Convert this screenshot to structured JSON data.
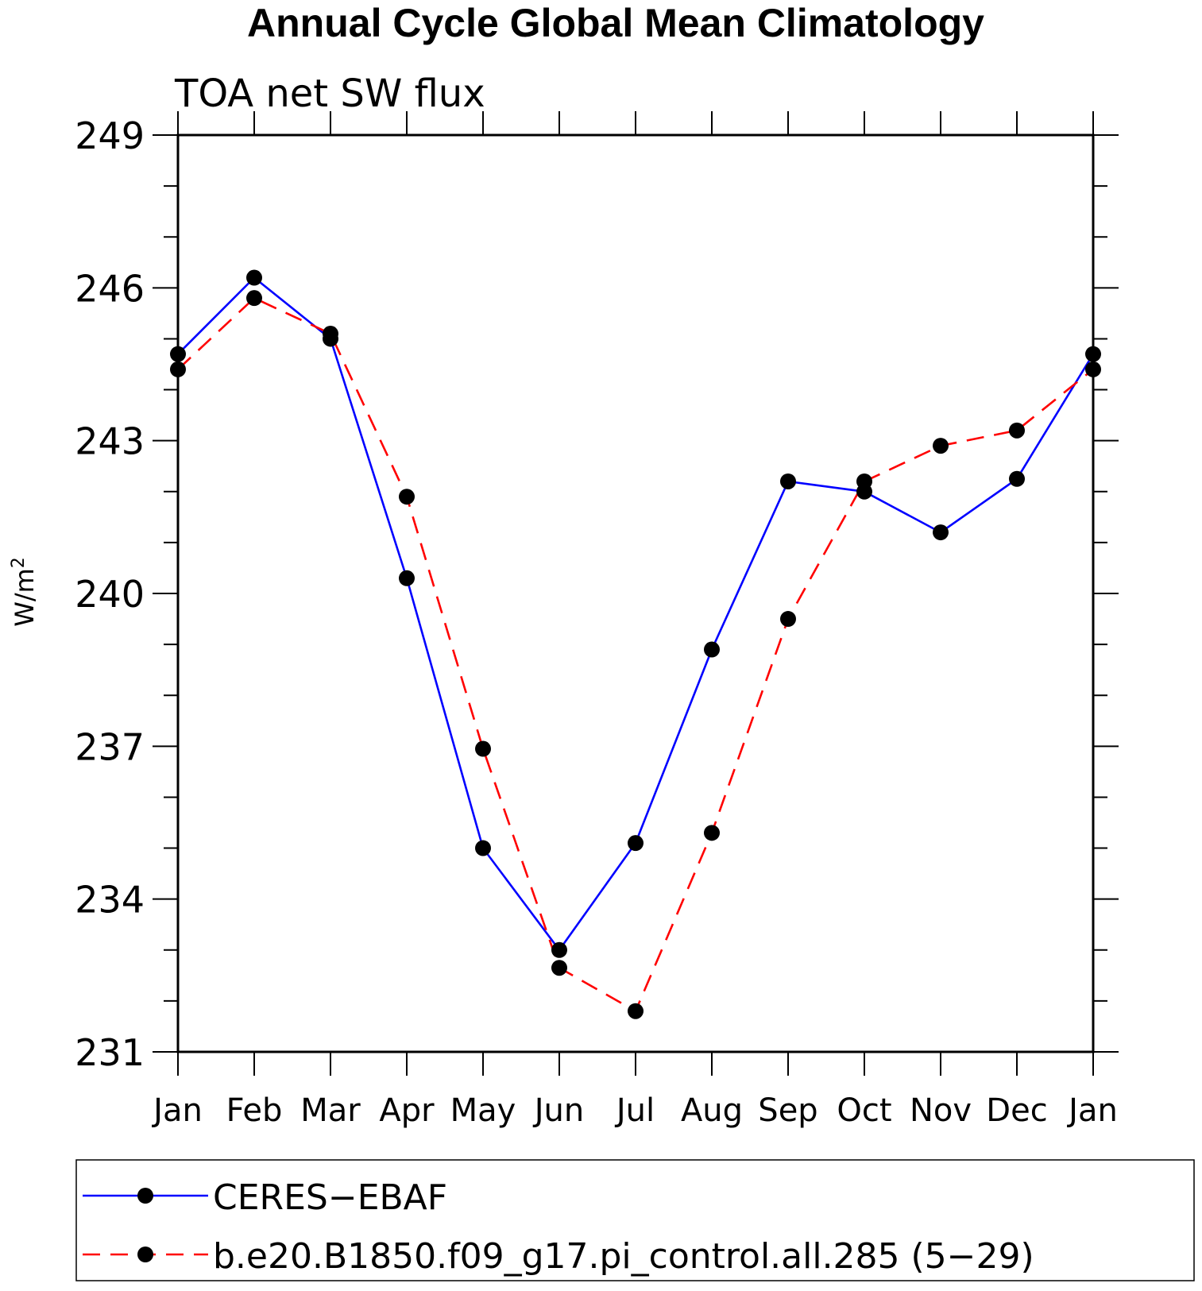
{
  "chart_data": {
    "type": "line",
    "title": "Annual Cycle Global Mean Climatology",
    "subtitle": "TOA net SW flux",
    "ylabel": "W/m",
    "ylabel_superscript": "2",
    "ylim": [
      231,
      249
    ],
    "yticks": [
      249,
      246,
      243,
      240,
      237,
      234,
      231
    ],
    "categories": [
      "Jan",
      "Feb",
      "Mar",
      "Apr",
      "May",
      "Jun",
      "Jul",
      "Aug",
      "Sep",
      "Oct",
      "Nov",
      "Dec",
      "Jan"
    ],
    "grid": false,
    "legend_position": "bottom",
    "series": [
      {
        "name": "CERES−EBAF",
        "color": "#0000ff",
        "style": "solid",
        "marker": "filled-circle",
        "values": [
          244.7,
          246.2,
          245.0,
          240.3,
          235.0,
          233.0,
          235.1,
          238.9,
          242.2,
          242.0,
          241.2,
          242.25,
          244.7
        ]
      },
      {
        "name": "b.e20.B1850.f09_g17.pi_control.all.285 (5−29)",
        "color": "#ff0000",
        "style": "dashed",
        "marker": "filled-circle",
        "values": [
          244.4,
          245.8,
          245.1,
          241.9,
          236.95,
          232.65,
          231.8,
          235.3,
          239.5,
          242.2,
          242.9,
          243.2,
          244.4
        ]
      }
    ]
  }
}
